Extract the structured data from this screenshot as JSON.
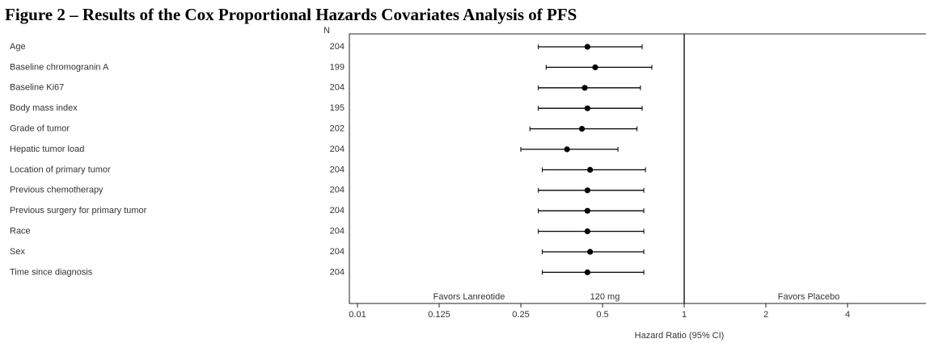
{
  "chart_data": {
    "type": "forest",
    "title": "Figure 2 – Results of the Cox Proportional Hazards Covariates Analysis of PFS",
    "n_header": "N",
    "categories": [
      "Age",
      "Baseline chromogranin A",
      "Baseline Ki67",
      "Body mass index",
      "Grade of tumor",
      "Hepatic tumor load",
      "Location of primary tumor",
      "Previous chemotherapy",
      "Previous surgery for primary tumor",
      "Race",
      "Sex",
      "Time since diagnosis"
    ],
    "n": [
      204,
      199,
      204,
      195,
      202,
      204,
      204,
      204,
      204,
      204,
      204,
      204
    ],
    "series": [
      {
        "color": "#000000",
        "values": [
          0.44,
          0.47,
          0.43,
          0.44,
          0.42,
          0.37,
          0.45,
          0.44,
          0.44,
          0.44,
          0.45,
          0.44
        ],
        "lower": [
          0.29,
          0.31,
          0.29,
          0.29,
          0.27,
          0.25,
          0.3,
          0.29,
          0.29,
          0.29,
          0.3,
          0.3
        ],
        "upper": [
          0.7,
          0.76,
          0.69,
          0.7,
          0.67,
          0.57,
          0.72,
          0.71,
          0.71,
          0.71,
          0.71,
          0.71
        ]
      }
    ],
    "reference_line": 1,
    "xlim": [
      0.01,
      8
    ],
    "xticks": [
      0.01,
      0.125,
      0.25,
      0.5,
      1,
      2,
      4,
      8
    ],
    "log_scale": true,
    "xlabel": "Hazard Ratio (95% CI)",
    "annotations": [
      "Favors Lanreotide",
      "120 mg",
      "Favors Placebo"
    ]
  }
}
